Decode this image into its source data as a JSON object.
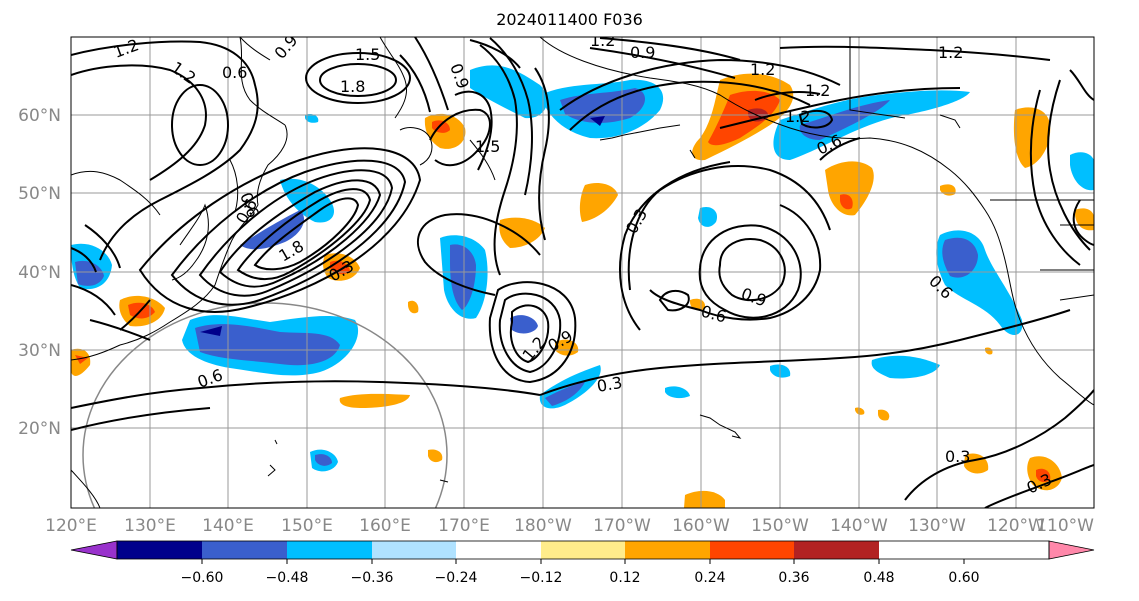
{
  "title": "2024011400 F036",
  "map": {
    "lat_labels": [
      "60°N",
      "50°N",
      "40°N",
      "30°N",
      "20°N"
    ],
    "lon_labels": [
      "120°E",
      "130°E",
      "140°E",
      "150°E",
      "160°E",
      "170°E",
      "180°W",
      "170°W",
      "160°W",
      "150°W",
      "140°W",
      "130°W",
      "120°W",
      "110°W"
    ],
    "contour_labels": [
      "1.2",
      "0.6",
      "0.9",
      "1.5",
      "1.8",
      "1.2",
      "0.9",
      "0.6",
      "1.2",
      "0.9",
      "1.2",
      "1.2",
      "1.2",
      "0.6",
      "1.5",
      "0.3",
      "1.8",
      "0.3",
      "0.6",
      "0.9",
      "1.2",
      "0.6",
      "1.2",
      "0.9",
      "0.6",
      "0.3",
      "0.6",
      "0.3",
      "0.3"
    ]
  },
  "colorbar": {
    "labels": [
      "−0.60",
      "−0.48",
      "−0.36",
      "−0.24",
      "−0.12",
      "0.12",
      "0.24",
      "0.36",
      "0.48",
      "0.60"
    ],
    "colors": [
      "#9932cc",
      "#00008b",
      "#3a5fcd",
      "#00bfff",
      "#b0e2ff",
      "#ffffff",
      "#ffec8b",
      "#ffa500",
      "#ff4500",
      "#b22222",
      "#ff88aa"
    ]
  }
}
